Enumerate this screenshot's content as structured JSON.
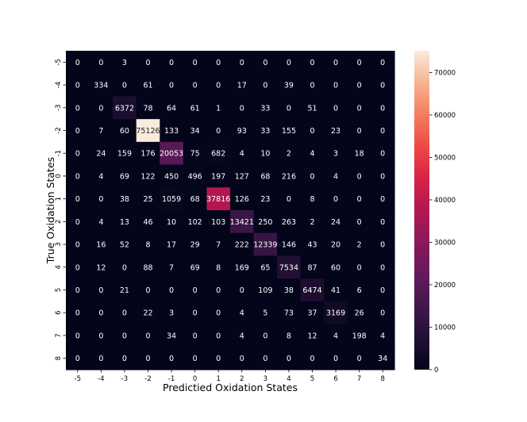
{
  "chart_data": {
    "type": "heatmap",
    "title": "",
    "xlabel": "Predictied Oxidation States",
    "ylabel": "True Oxidation States",
    "x_categories": [
      "-5",
      "-4",
      "-3",
      "-2",
      "-1",
      "0",
      "1",
      "2",
      "3",
      "4",
      "5",
      "6",
      "7",
      "8"
    ],
    "y_categories": [
      "-5",
      "-4",
      "-3",
      "-2",
      "-1",
      "0",
      "1",
      "2",
      "3",
      "4",
      "5",
      "6",
      "7",
      "8"
    ],
    "values": [
      [
        0,
        0,
        3,
        0,
        0,
        0,
        0,
        0,
        0,
        0,
        0,
        0,
        0,
        0
      ],
      [
        0,
        334,
        0,
        61,
        0,
        0,
        0,
        17,
        0,
        39,
        0,
        0,
        0,
        0
      ],
      [
        0,
        0,
        6372,
        78,
        64,
        61,
        1,
        0,
        33,
        0,
        51,
        0,
        0,
        0
      ],
      [
        0,
        7,
        60,
        75126,
        133,
        34,
        0,
        93,
        33,
        155,
        0,
        23,
        0,
        0
      ],
      [
        0,
        24,
        159,
        176,
        20053,
        75,
        682,
        4,
        10,
        2,
        4,
        3,
        18,
        0
      ],
      [
        0,
        4,
        69,
        122,
        450,
        496,
        197,
        127,
        68,
        216,
        0,
        4,
        0,
        0
      ],
      [
        0,
        0,
        38,
        25,
        1059,
        68,
        37816,
        126,
        23,
        0,
        8,
        0,
        0,
        0
      ],
      [
        0,
        4,
        13,
        46,
        10,
        102,
        103,
        13421,
        250,
        263,
        2,
        24,
        0,
        0
      ],
      [
        0,
        16,
        52,
        8,
        17,
        29,
        7,
        222,
        12339,
        146,
        43,
        20,
        2,
        0
      ],
      [
        0,
        12,
        0,
        88,
        7,
        69,
        8,
        169,
        65,
        7534,
        87,
        60,
        0,
        0
      ],
      [
        0,
        0,
        21,
        0,
        0,
        0,
        0,
        0,
        109,
        38,
        6474,
        41,
        6,
        0
      ],
      [
        0,
        0,
        0,
        22,
        3,
        0,
        0,
        4,
        5,
        73,
        37,
        3169,
        26,
        0
      ],
      [
        0,
        0,
        0,
        0,
        34,
        0,
        0,
        4,
        0,
        8,
        12,
        4,
        198,
        4
      ],
      [
        0,
        0,
        0,
        0,
        0,
        0,
        0,
        0,
        0,
        0,
        0,
        0,
        0,
        34
      ]
    ],
    "vmin": 0,
    "vmax": 75126,
    "colorbar_ticks": [
      0,
      10000,
      20000,
      30000,
      40000,
      50000,
      60000,
      70000
    ],
    "colormap": "rocket",
    "grid": false,
    "legend": "colorbar-right"
  }
}
